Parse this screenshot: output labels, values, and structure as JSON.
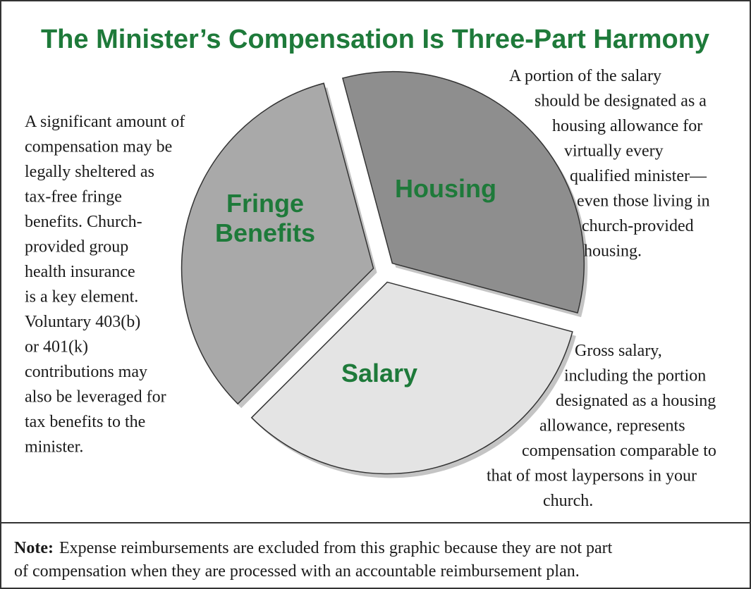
{
  "title": "The Minister’s Compensation Is Three-Part Harmony",
  "segments": [
    {
      "label": [
        "Housing"
      ],
      "description": [
        "A portion of the salary",
        "should be designated as a",
        "housing allowance for",
        "virtually every",
        "qualified minister—",
        "even those living in",
        "church-provided",
        "housing."
      ]
    },
    {
      "label": [
        "Salary"
      ],
      "description": [
        "Gross salary,",
        "including the portion",
        "designated as a housing",
        "allowance, represents",
        "compensation comparable to",
        "that of most laypersons in your",
        "church."
      ]
    },
    {
      "label": [
        "Fringe",
        "Benefits"
      ],
      "description": [
        "A significant amount of",
        "compensation may be",
        "legally sheltered as",
        "tax-free fringe",
        "benefits. Church-",
        "provided group",
        "health insurance",
        "is a key element.",
        "Voluntary 403(b)",
        "or 401(k)",
        "contributions may",
        "also be leveraged for",
        "tax benefits to the",
        "minister."
      ]
    }
  ],
  "note": {
    "label": "Note:",
    "lines": [
      "Expense reimbursements are excluded from this graphic because they are not part",
      "of compensation when they are processed with an accountable reimbursement plan."
    ]
  }
}
